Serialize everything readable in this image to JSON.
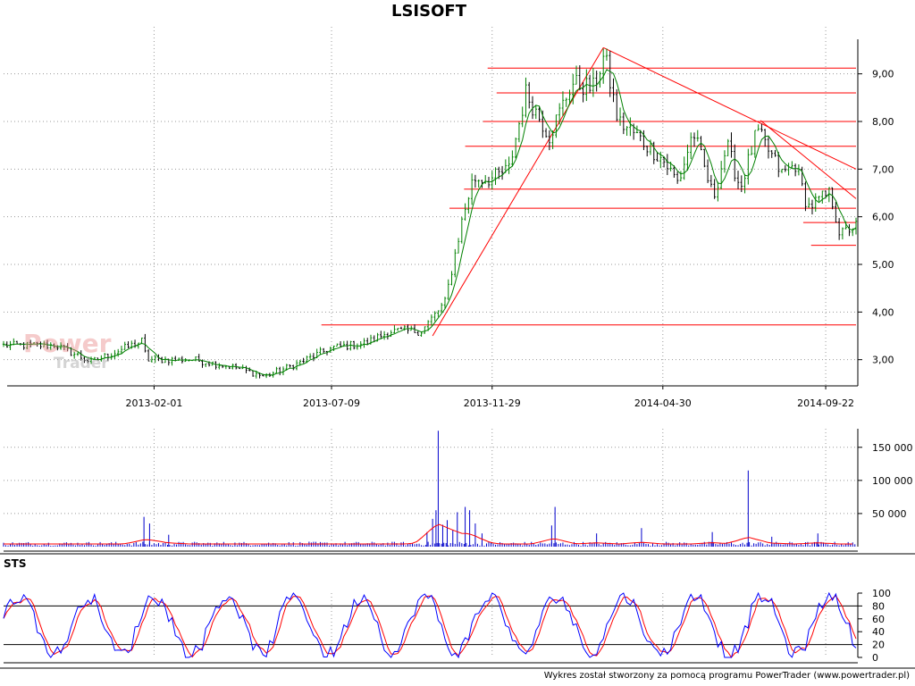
{
  "chart_data": [
    {
      "type": "candlestick",
      "title": "LSISOFT",
      "x_tick_labels": [
        "2013-02-01",
        "2013-07-09",
        "2013-11-29",
        "2014-04-30",
        "2014-09-22"
      ],
      "y_tick_labels": [
        "3,00",
        "4,00",
        "5,00",
        "6,00",
        "7,00",
        "8,00",
        "9,00"
      ],
      "y_ticks": [
        3,
        4,
        5,
        6,
        7,
        8,
        9
      ],
      "ylim": [
        2.45,
        9.65
      ],
      "grid": true,
      "close_trajectory": [
        {
          "x": "2012-09-20",
          "y": 3.3
        },
        {
          "x": "2012-11-06",
          "y": 3.3
        },
        {
          "x": "2012-12-07",
          "y": 2.95
        },
        {
          "x": "2013-01-22",
          "y": 3.4
        },
        {
          "x": "2013-01-25",
          "y": 3.0
        },
        {
          "x": "2013-03-08",
          "y": 3.0
        },
        {
          "x": "2013-04-12",
          "y": 2.85
        },
        {
          "x": "2013-05-10",
          "y": 2.65
        },
        {
          "x": "2013-06-07",
          "y": 2.9
        },
        {
          "x": "2013-07-09",
          "y": 3.25
        },
        {
          "x": "2013-08-09",
          "y": 3.35
        },
        {
          "x": "2013-08-30",
          "y": 3.6
        },
        {
          "x": "2013-09-27",
          "y": 3.6
        },
        {
          "x": "2013-10-18",
          "y": 4.2
        },
        {
          "x": "2013-11-02",
          "y": 5.9
        },
        {
          "x": "2013-11-12",
          "y": 6.8
        },
        {
          "x": "2013-11-29",
          "y": 6.8
        },
        {
          "x": "2013-12-14",
          "y": 7.0
        },
        {
          "x": "2013-12-29",
          "y": 8.6
        },
        {
          "x": "2014-01-19",
          "y": 7.7
        },
        {
          "x": "2014-02-08",
          "y": 8.8
        },
        {
          "x": "2014-02-27",
          "y": 8.7
        },
        {
          "x": "2014-03-09",
          "y": 9.4
        },
        {
          "x": "2014-03-21",
          "y": 8.0
        },
        {
          "x": "2014-04-02",
          "y": 7.8
        },
        {
          "x": "2014-04-30",
          "y": 7.2
        },
        {
          "x": "2014-05-14",
          "y": 6.7
        },
        {
          "x": "2014-05-27",
          "y": 7.8
        },
        {
          "x": "2014-06-14",
          "y": 6.4
        },
        {
          "x": "2014-06-26",
          "y": 7.5
        },
        {
          "x": "2014-07-08",
          "y": 6.6
        },
        {
          "x": "2014-07-23",
          "y": 7.8
        },
        {
          "x": "2014-08-14",
          "y": 6.9
        },
        {
          "x": "2014-08-26",
          "y": 7.1
        },
        {
          "x": "2014-09-06",
          "y": 6.2
        },
        {
          "x": "2014-09-26",
          "y": 6.5
        },
        {
          "x": "2014-10-05",
          "y": 5.6
        },
        {
          "x": "2014-10-16",
          "y": 5.8
        }
      ],
      "moving_average_line": true,
      "horizontal_lines": [
        {
          "y": 9.12,
          "from": "2013-11-25",
          "to": "2014-10-19"
        },
        {
          "y": 8.6,
          "from": "2013-12-03",
          "to": "2014-10-19"
        },
        {
          "y": 8.0,
          "from": "2013-11-21",
          "to": "2014-10-19"
        },
        {
          "y": 7.48,
          "from": "2013-11-05",
          "to": "2014-10-19"
        },
        {
          "y": 6.58,
          "from": "2013-11-04",
          "to": "2014-10-19"
        },
        {
          "y": 6.18,
          "from": "2013-10-22",
          "to": "2014-10-19"
        },
        {
          "y": 5.88,
          "from": "2014-09-02",
          "to": "2014-10-19"
        },
        {
          "y": 5.4,
          "from": "2014-09-09",
          "to": "2014-10-19"
        },
        {
          "y": 3.73,
          "from": "2013-06-30",
          "to": "2014-10-19"
        }
      ],
      "trend_lines": [
        {
          "x1": "2013-10-07",
          "y1": 3.5,
          "x2": "2014-03-08",
          "y2": 9.55
        },
        {
          "x1": "2014-03-08",
          "y1": 9.55,
          "x2": "2014-10-19",
          "y2": 7.0
        },
        {
          "x1": "2014-07-26",
          "y1": 8.02,
          "x2": "2014-10-19",
          "y2": 6.38
        }
      ],
      "colors": {
        "up": "#008000",
        "down": "#000000",
        "ma": "#008000",
        "lines": "#ff0000"
      }
    },
    {
      "type": "bar",
      "title": "",
      "y_tick_labels": [
        "50 000",
        "100 000",
        "150 000"
      ],
      "y_ticks": [
        50000,
        100000,
        150000
      ],
      "ylim": [
        0,
        178000
      ],
      "spikes": [
        {
          "x": "2013-01-23",
          "value": 45000
        },
        {
          "x": "2013-01-28",
          "value": 35000
        },
        {
          "x": "2013-02-14",
          "value": 18000
        },
        {
          "x": "2013-10-02",
          "value": 22000
        },
        {
          "x": "2013-10-07",
          "value": 42000
        },
        {
          "x": "2013-10-10",
          "value": 55000
        },
        {
          "x": "2013-10-12",
          "value": 175000
        },
        {
          "x": "2013-10-16",
          "value": 33000
        },
        {
          "x": "2013-10-20",
          "value": 40000
        },
        {
          "x": "2013-10-25",
          "value": 25000
        },
        {
          "x": "2013-10-29",
          "value": 52000
        },
        {
          "x": "2013-11-05",
          "value": 60000
        },
        {
          "x": "2013-11-09",
          "value": 55000
        },
        {
          "x": "2013-11-14",
          "value": 35000
        },
        {
          "x": "2013-11-20",
          "value": 20000
        },
        {
          "x": "2014-01-21",
          "value": 32000
        },
        {
          "x": "2014-01-24",
          "value": 60000
        },
        {
          "x": "2014-03-02",
          "value": 20000
        },
        {
          "x": "2014-04-11",
          "value": 28000
        },
        {
          "x": "2014-06-13",
          "value": 22000
        },
        {
          "x": "2014-07-15",
          "value": 115000
        },
        {
          "x": "2014-08-05",
          "value": 15000
        },
        {
          "x": "2014-09-15",
          "value": 20000
        }
      ],
      "average_line": true,
      "colors": {
        "bars": "#0000cc",
        "average": "#ff0000"
      }
    },
    {
      "type": "line",
      "title": "STS",
      "y_tick_labels": [
        "0",
        "20",
        "40",
        "60",
        "80",
        "100"
      ],
      "y_ticks": [
        0,
        20,
        40,
        60,
        80,
        100
      ],
      "ylim": [
        0,
        100
      ],
      "reference_levels": [
        20,
        80
      ],
      "series": [
        {
          "color": "#0000ff"
        },
        {
          "color": "#ff0000"
        }
      ]
    }
  ],
  "footer": "Wykres został stworzony za pomocą programu PowerTrader (www.powertrader.pl)",
  "watermark": {
    "line1": "Power",
    "line2": "Trader"
  }
}
